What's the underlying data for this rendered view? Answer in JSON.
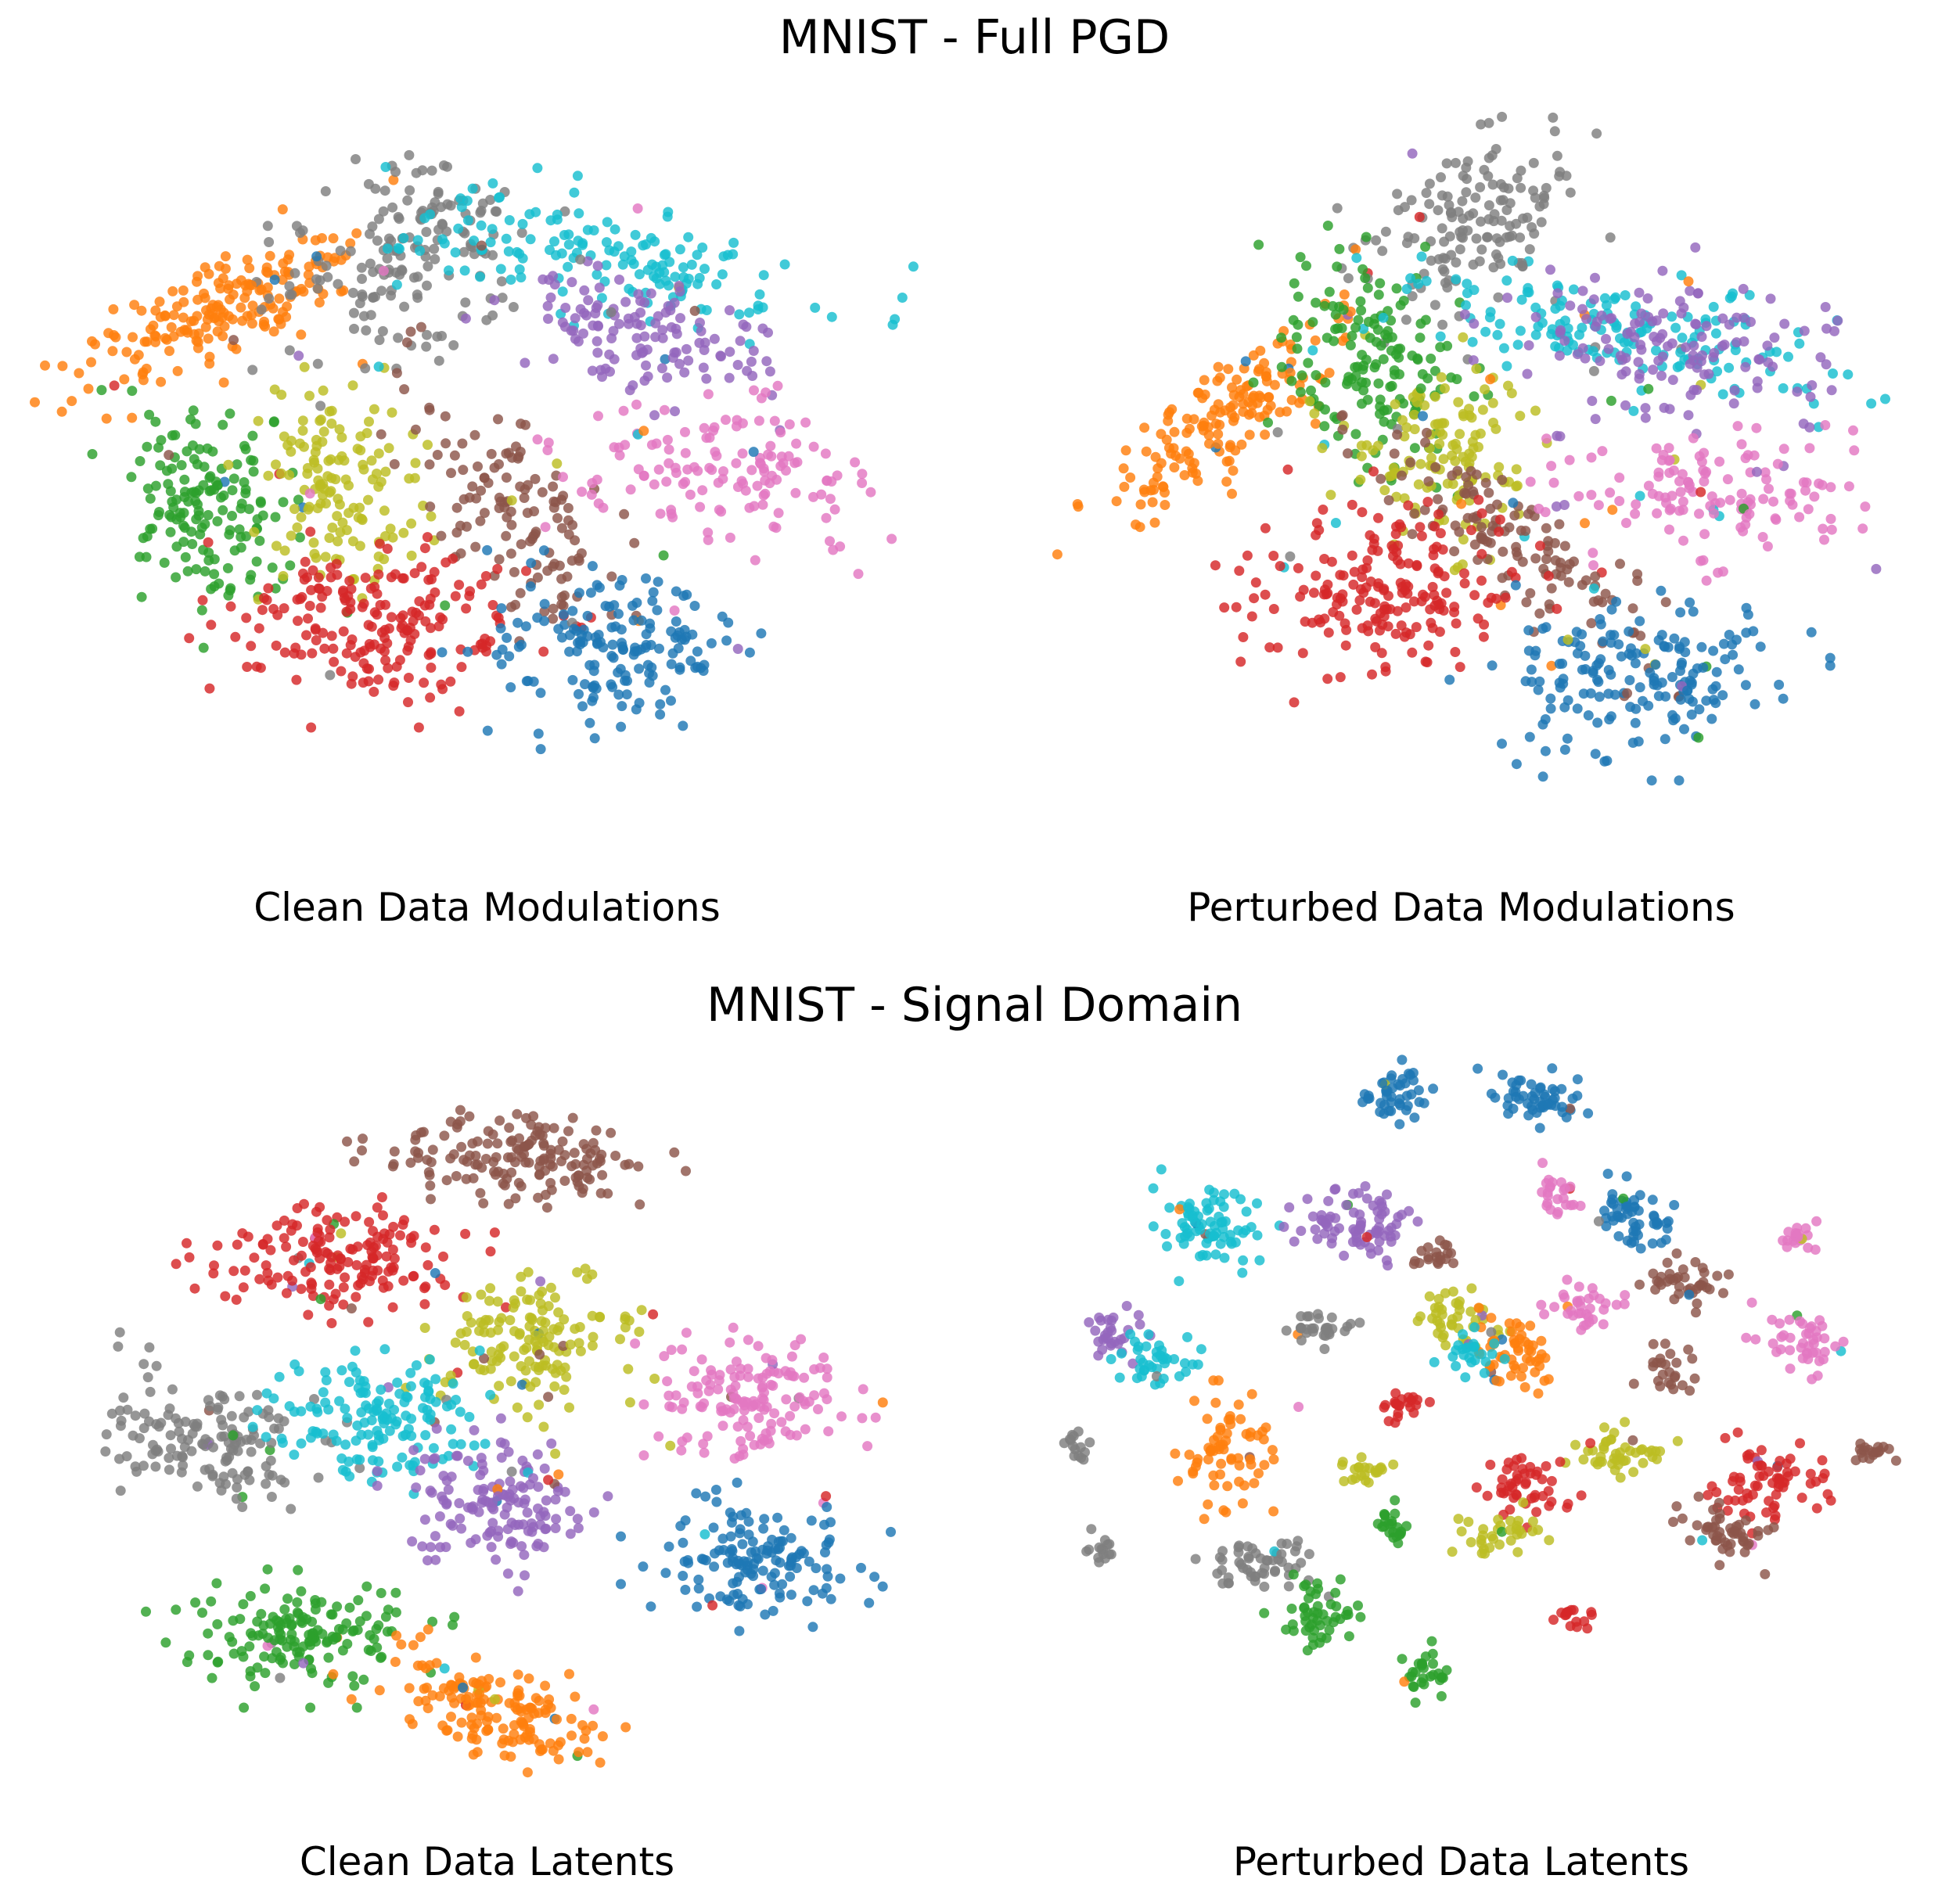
{
  "palette": {
    "0": "#1f77b4",
    "1": "#ff7f0e",
    "2": "#2ca02c",
    "3": "#d62728",
    "4": "#9467bd",
    "5": "#8c564b",
    "6": "#e377c2",
    "7": "#7f7f7f",
    "8": "#bcbd22",
    "9": "#17becf"
  },
  "figure_titles": [
    "MNIST - Full PGD",
    "MNIST - Signal Domain"
  ],
  "chart_data": [
    {
      "type": "scatter",
      "title": "",
      "xlabel": "Clean Data Modulations",
      "ylabel": "",
      "axis": "off",
      "grid": false,
      "clusters": [
        {
          "class": "1",
          "x": -30,
          "y": 22,
          "sx": 4,
          "sy": 12,
          "rot": -55,
          "n": 190
        },
        {
          "class": "7",
          "x": -10,
          "y": 30,
          "sx": 7,
          "sy": 11,
          "rot": -35,
          "n": 170
        },
        {
          "class": "9",
          "x": 12,
          "y": 30,
          "sx": 16,
          "sy": 5,
          "rot": -15,
          "n": 160
        },
        {
          "class": "4",
          "x": 17,
          "y": 18,
          "sx": 10,
          "sy": 5,
          "rot": -20,
          "n": 130
        },
        {
          "class": "2",
          "x": -33,
          "y": -7,
          "sx": 6,
          "sy": 10,
          "rot": 10,
          "n": 160
        },
        {
          "class": "8",
          "x": -17,
          "y": -3,
          "sx": 6,
          "sy": 10,
          "rot": 0,
          "n": 140
        },
        {
          "class": "5",
          "x": 2,
          "y": -8,
          "sx": 5,
          "sy": 13,
          "rot": 30,
          "n": 130
        },
        {
          "class": "6",
          "x": 26,
          "y": -2,
          "sx": 11,
          "sy": 6,
          "rot": -10,
          "n": 140
        },
        {
          "class": "3",
          "x": -13,
          "y": -26,
          "sx": 11,
          "sy": 7,
          "rot": 0,
          "n": 200
        },
        {
          "class": "0",
          "x": 14,
          "y": -30,
          "sx": 9,
          "sy": 7,
          "rot": 0,
          "n": 170
        }
      ]
    },
    {
      "type": "scatter",
      "title": "",
      "xlabel": "Perturbed Data Modulations",
      "ylabel": "",
      "axis": "off",
      "grid": false,
      "clusters": [
        {
          "class": "7",
          "x": 0,
          "y": 34,
          "sx": 7,
          "sy": 9,
          "rot": -20,
          "n": 150
        },
        {
          "class": "1",
          "x": -28,
          "y": 6,
          "sx": 4,
          "sy": 13,
          "rot": -40,
          "n": 170
        },
        {
          "class": "2",
          "x": -11,
          "y": 13,
          "sx": 7,
          "sy": 10,
          "rot": 20,
          "n": 160
        },
        {
          "class": "9",
          "x": 18,
          "y": 18,
          "sx": 15,
          "sy": 5,
          "rot": -15,
          "n": 160
        },
        {
          "class": "4",
          "x": 23,
          "y": 16,
          "sx": 11,
          "sy": 7,
          "rot": -10,
          "n": 140
        },
        {
          "class": "8",
          "x": -3,
          "y": 0,
          "sx": 7,
          "sy": 8,
          "rot": 0,
          "n": 130
        },
        {
          "class": "5",
          "x": 6,
          "y": -14,
          "sx": 4,
          "sy": 13,
          "rot": 45,
          "n": 130
        },
        {
          "class": "6",
          "x": 29,
          "y": -6,
          "sx": 11,
          "sy": 6,
          "rot": 0,
          "n": 140
        },
        {
          "class": "3",
          "x": -10,
          "y": -20,
          "sx": 9,
          "sy": 8,
          "rot": 0,
          "n": 200
        },
        {
          "class": "0",
          "x": 19,
          "y": -34,
          "sx": 10,
          "sy": 7,
          "rot": 0,
          "n": 180
        }
      ]
    },
    {
      "type": "scatter",
      "title": "",
      "xlabel": "Clean Data Latents",
      "ylabel": "",
      "axis": "off",
      "grid": false,
      "clusters": [
        {
          "class": "5",
          "x": 3,
          "y": 40,
          "sx": 9,
          "sy": 4,
          "rot": -5,
          "n": 160
        },
        {
          "class": "3",
          "x": -17,
          "y": 25,
          "sx": 9,
          "sy": 5,
          "rot": 0,
          "n": 170
        },
        {
          "class": "8",
          "x": 5,
          "y": 12,
          "sx": 7,
          "sy": 6,
          "rot": 0,
          "n": 150
        },
        {
          "class": "6",
          "x": 29,
          "y": 3,
          "sx": 7,
          "sy": 6,
          "rot": -30,
          "n": 150
        },
        {
          "class": "7",
          "x": -33,
          "y": -3,
          "sx": 8,
          "sy": 6,
          "rot": -30,
          "n": 150
        },
        {
          "class": "9",
          "x": -12,
          "y": 0,
          "sx": 7,
          "sy": 6,
          "rot": 0,
          "n": 150
        },
        {
          "class": "4",
          "x": 0,
          "y": -13,
          "sx": 6,
          "sy": 6,
          "rot": 0,
          "n": 150
        },
        {
          "class": "0",
          "x": 30,
          "y": -22,
          "sx": 7,
          "sy": 6,
          "rot": 0,
          "n": 150
        },
        {
          "class": "2",
          "x": -22,
          "y": -33,
          "sx": 8,
          "sy": 5,
          "rot": 0,
          "n": 160
        },
        {
          "class": "1",
          "x": 0,
          "y": -44,
          "sx": 4,
          "sy": 9,
          "rot": 60,
          "n": 160
        }
      ]
    },
    {
      "type": "scatter",
      "title": "",
      "xlabel": "Perturbed Data Latents",
      "ylabel": "",
      "axis": "off",
      "grid": false,
      "clusters": [
        {
          "class": "0",
          "x": -8,
          "y": 50,
          "sx": 3,
          "sy": 2.5,
          "rot": 0,
          "n": 45
        },
        {
          "class": "0",
          "x": 8,
          "y": 49,
          "sx": 3.5,
          "sy": 2.5,
          "rot": 0,
          "n": 55
        },
        {
          "class": "9",
          "x": -30,
          "y": 30,
          "sx": 4,
          "sy": 4,
          "rot": 0,
          "n": 80
        },
        {
          "class": "4",
          "x": -13,
          "y": 30,
          "sx": 4,
          "sy": 4,
          "rot": 0,
          "n": 80
        },
        {
          "class": "0",
          "x": 18,
          "y": 31,
          "sx": 3.5,
          "sy": 3,
          "rot": 0,
          "n": 55
        },
        {
          "class": "6",
          "x": 10,
          "y": 34,
          "sx": 1.5,
          "sy": 2.5,
          "rot": 0,
          "n": 25
        },
        {
          "class": "4",
          "x": -41,
          "y": 13,
          "sx": 2,
          "sy": 2,
          "rot": 0,
          "n": 30
        },
        {
          "class": "9",
          "x": -35,
          "y": 9,
          "sx": 3,
          "sy": 2.5,
          "rot": 0,
          "n": 40
        },
        {
          "class": "7",
          "x": -17,
          "y": 14,
          "sx": 3,
          "sy": 1.5,
          "rot": 0,
          "n": 30
        },
        {
          "class": "8",
          "x": -2,
          "y": 15,
          "sx": 3,
          "sy": 2.5,
          "rot": 0,
          "n": 45
        },
        {
          "class": "1",
          "x": 5,
          "y": 10,
          "sx": 2.5,
          "sy": 4,
          "rot": 0,
          "n": 55
        },
        {
          "class": "9",
          "x": 0,
          "y": 10,
          "sx": 2,
          "sy": 2,
          "rot": 0,
          "n": 25
        },
        {
          "class": "6",
          "x": 13,
          "y": 17,
          "sx": 3,
          "sy": 2,
          "rot": 0,
          "n": 35
        },
        {
          "class": "5",
          "x": -4,
          "y": 25,
          "sx": 1.5,
          "sy": 1.5,
          "rot": 0,
          "n": 20
        },
        {
          "class": "5",
          "x": 24,
          "y": 21,
          "sx": 3,
          "sy": 2,
          "rot": -20,
          "n": 40
        },
        {
          "class": "6",
          "x": 38,
          "y": 12,
          "sx": 3,
          "sy": 3,
          "rot": 0,
          "n": 45
        },
        {
          "class": "6",
          "x": 37,
          "y": 28,
          "sx": 1.5,
          "sy": 1.5,
          "rot": 0,
          "n": 20
        },
        {
          "class": "1",
          "x": -27,
          "y": -5,
          "sx": 3.5,
          "sy": 5,
          "rot": 0,
          "n": 70
        },
        {
          "class": "3",
          "x": -8,
          "y": 2,
          "sx": 1.5,
          "sy": 1.5,
          "rot": 0,
          "n": 22
        },
        {
          "class": "8",
          "x": 17,
          "y": -5,
          "sx": 3,
          "sy": 2.5,
          "rot": 0,
          "n": 45
        },
        {
          "class": "5",
          "x": 23,
          "y": 8,
          "sx": 2,
          "sy": 2,
          "rot": 0,
          "n": 25
        },
        {
          "class": "3",
          "x": 34,
          "y": -10,
          "sx": 4,
          "sy": 4,
          "rot": 0,
          "n": 70
        },
        {
          "class": "5",
          "x": 46,
          "y": -5,
          "sx": 1.5,
          "sy": 1,
          "rot": 0,
          "n": 18
        },
        {
          "class": "5",
          "x": 29,
          "y": -17,
          "sx": 3,
          "sy": 3,
          "rot": 0,
          "n": 50
        },
        {
          "class": "3",
          "x": 6,
          "y": -11,
          "sx": 3,
          "sy": 3,
          "rot": 0,
          "n": 50
        },
        {
          "class": "8",
          "x": 4,
          "y": -17,
          "sx": 3,
          "sy": 2,
          "rot": 0,
          "n": 35
        },
        {
          "class": "2",
          "x": -9,
          "y": -16,
          "sx": 1.5,
          "sy": 2,
          "rot": 0,
          "n": 22
        },
        {
          "class": "8",
          "x": -12,
          "y": -8,
          "sx": 2,
          "sy": 1.5,
          "rot": 0,
          "n": 22
        },
        {
          "class": "7",
          "x": -24,
          "y": -22,
          "sx": 4,
          "sy": 2.5,
          "rot": 0,
          "n": 55
        },
        {
          "class": "2",
          "x": -17,
          "y": -30,
          "sx": 3,
          "sy": 3,
          "rot": 0,
          "n": 50
        },
        {
          "class": "2",
          "x": -5,
          "y": -39,
          "sx": 2,
          "sy": 2.5,
          "rot": 0,
          "n": 30
        },
        {
          "class": "7",
          "x": -45,
          "y": -4,
          "sx": 1,
          "sy": 1.5,
          "rot": 0,
          "n": 15
        },
        {
          "class": "7",
          "x": -42,
          "y": -20,
          "sx": 1,
          "sy": 1.5,
          "rot": 0,
          "n": 15
        },
        {
          "class": "3",
          "x": 12,
          "y": -30,
          "sx": 1.5,
          "sy": 1,
          "rot": 0,
          "n": 15
        }
      ]
    }
  ]
}
